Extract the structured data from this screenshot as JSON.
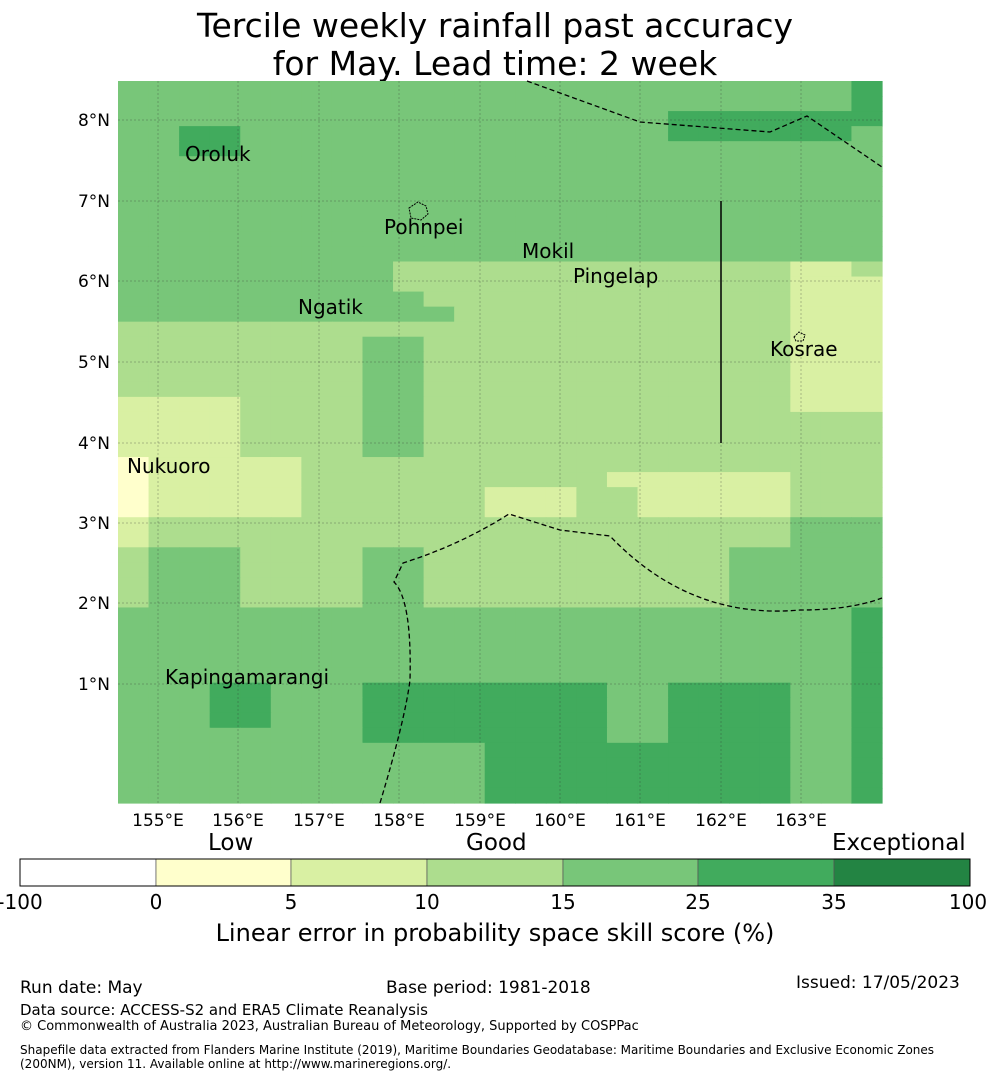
{
  "title": {
    "line1": "Tercile weekly rainfall past accuracy",
    "line2": "for May. Lead time: 2 week"
  },
  "map": {
    "lon_labels": [
      "155°E",
      "156°E",
      "157°E",
      "158°E",
      "159°E",
      "160°E",
      "161°E",
      "162°E",
      "163°E"
    ],
    "lat_labels": [
      "8°N",
      "7°N",
      "6°N",
      "5°N",
      "4°N",
      "3°N",
      "2°N",
      "1°N"
    ],
    "places": [
      {
        "name": "Oroluk"
      },
      {
        "name": "Pohnpei"
      },
      {
        "name": "Mokil"
      },
      {
        "name": "Pingelap"
      },
      {
        "name": "Ngatik"
      },
      {
        "name": "Kosrae"
      },
      {
        "name": "Nukuoro"
      },
      {
        "name": "Kapingamarangi"
      }
    ],
    "grid_class_rows_north_to_south": [
      "4444444444444444444444445",
      "4444444444444444444444445",
      "4444444444444444445555555",
      "4455444444444444445555554",
      "4455444444444444444444444",
      "4444444444444444444444444",
      "4444444444444444444444444",
      "4444444444444444444444444",
      "4444444444444444444444444",
      "4444444444444444444444444",
      "4444444444444444444444444",
      "4444444444444444444444444",
      "4444444443333333333333223",
      "4444444443333333333333222",
      "4444444444333333333333222",
      "4444444444433333333333222",
      "3333333333333333333333222",
      "3333333344333333333333222",
      "3333333344333333333333222",
      "3333333344333333333333222",
      "3333333344333333333333222",
      "2222333344333333333333222",
      "2222333344333333333333333",
      "2222333344333333333333333",
      "2222333344333333333333333",
      "1222223333333333333333333",
      "1222223333333333222222333",
      "1222223333332223322222333",
      "1222223333332223322222333",
      "2333333333333333333333444",
      "2333333333333333333333444",
      "3444333344333333333344444",
      "3444333344333333333344444",
      "3444333344333333333344444",
      "3444333344333333333344444",
      "4444444444444444444444445",
      "4444444444444444444444445",
      "4444444444444444444444445",
      "4444444444444444444444445",
      "4444444444444444444444445",
      "4445544455555555445555445",
      "4445544455555555445555445",
      "4445544455555555445555445",
      "4444444455555555445555445",
      "4444444444445555555555445",
      "4444444444445555555555445",
      "4444444444445555555555445",
      "4444444444445555555555445"
    ]
  },
  "colorbar": {
    "categories": [
      "Low",
      "Good",
      "Exceptional"
    ],
    "ticks": [
      "-100",
      "0",
      "5",
      "10",
      "15",
      "25",
      "35",
      "100"
    ],
    "colors": [
      "#ffffff",
      "#ffffcc",
      "#d9f0a3",
      "#addd8e",
      "#78c679",
      "#41ab5d",
      "#238443"
    ],
    "label": "Linear error in probability space skill score (%)"
  },
  "footer": {
    "run_date": "Run date: May",
    "base_period": "Base period: 1981-2018",
    "issued": "Issued: 17/05/2023",
    "data_source": "Data source: ACCESS-S2 and ERA5 Climate Reanalysis",
    "copyright": "© Commonwealth of Australia 2023, Australian Bureau of Meteorology, Supported by COSPPac",
    "shapefile_line1": "Shapefile data extracted from Flanders Marine Institute (2019), Maritime Boundaries Geodatabase: Maritime Boundaries and Exclusive Economic Zones",
    "shapefile_line2": "(200NM), version 11. Available online at http://www.marineregions.org/."
  }
}
